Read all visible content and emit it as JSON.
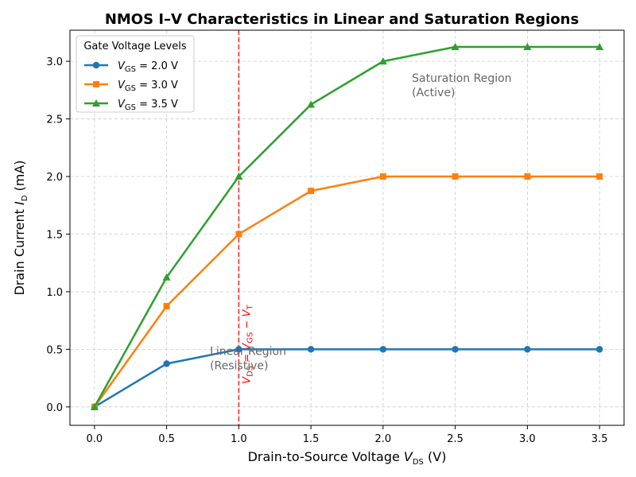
{
  "chart_data": {
    "type": "line",
    "title": "NMOS I–V Characteristics in Linear and Saturation Regions",
    "xlabel": "Drain-to-Source Voltage",
    "xlabel_symbol": "V",
    "xlabel_sub": "DS",
    "xlabel_unit": "(V)",
    "ylabel": "Drain Current",
    "ylabel_symbol": "I",
    "ylabel_sub": "D",
    "ylabel_unit": "(mA)",
    "xlim": [
      -0.17,
      3.67
    ],
    "ylim": [
      -0.16,
      3.27
    ],
    "xticks": [
      0.0,
      0.5,
      1.0,
      1.5,
      2.0,
      2.5,
      3.0,
      3.5
    ],
    "yticks": [
      0.0,
      0.5,
      1.0,
      1.5,
      2.0,
      2.5,
      3.0
    ],
    "tick_format": "0.0",
    "grid": true,
    "legend": {
      "title": "Gate Voltage Levels",
      "placement": "top-left"
    },
    "x": [
      0.0,
      0.5,
      1.0,
      1.5,
      2.0,
      2.5,
      3.0,
      3.5
    ],
    "series": [
      {
        "name": "V_GS = 2.0 V",
        "symbol": "V",
        "sub": "GS",
        "suffix": " = 2.0 V",
        "color": "#1f77b4",
        "marker": "circle",
        "values": [
          0.0,
          0.375,
          0.5,
          0.5,
          0.5,
          0.5,
          0.5,
          0.5
        ]
      },
      {
        "name": "V_GS = 3.0 V",
        "symbol": "V",
        "sub": "GS",
        "suffix": " = 3.0 V",
        "color": "#ff7f0e",
        "marker": "square",
        "values": [
          0.0,
          0.875,
          1.5,
          1.875,
          2.0,
          2.0,
          2.0,
          2.0
        ]
      },
      {
        "name": "V_GS = 3.5 V",
        "symbol": "V",
        "sub": "GS",
        "suffix": " = 3.5 V",
        "color": "#2ca02c",
        "marker": "triangle",
        "values": [
          0.0,
          1.125,
          2.0,
          2.625,
          3.0,
          3.125,
          3.125,
          3.125
        ]
      }
    ],
    "reference_line": {
      "x": 1.0,
      "color": "#ff0000",
      "style": "dashed",
      "label": "V_DS = V_GS − V_T",
      "label_parts": [
        {
          "t": "V",
          "s": "DS"
        },
        {
          "t": " = V",
          "s": "GS"
        },
        {
          "t": " − V",
          "s": "T"
        }
      ]
    },
    "annotations": [
      {
        "lines": [
          "Linear Region",
          "(Resistive)"
        ],
        "x": 0.8,
        "y": 0.45,
        "color": "#666666"
      },
      {
        "lines": [
          "Saturation Region",
          "(Active)"
        ],
        "x": 2.2,
        "y": 2.82,
        "color": "#666666"
      }
    ]
  }
}
